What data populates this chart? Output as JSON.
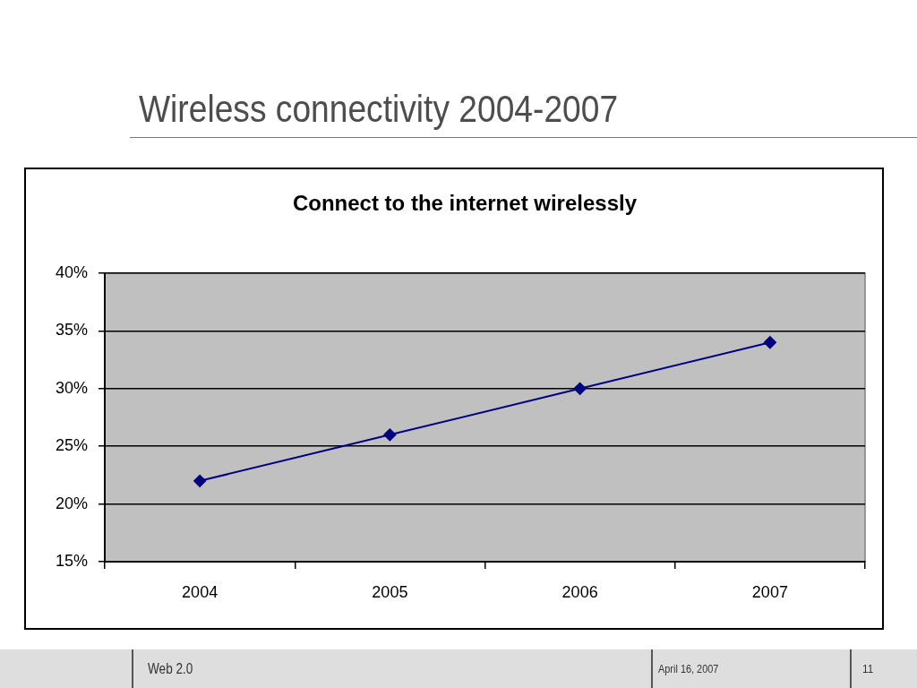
{
  "chart_data": {
    "type": "line",
    "title": "Wireless connectivity 2004-2007",
    "subtitle": "Connect to the internet wirelessly",
    "categories": [
      "2004",
      "2005",
      "2006",
      "2007"
    ],
    "values": [
      22,
      26,
      30,
      34
    ],
    "color": "#000080",
    "marker": "diamond",
    "line_style": "solid",
    "ylim": [
      15,
      40
    ],
    "yticks": [
      {
        "value": 15,
        "label": "15%"
      },
      {
        "value": 20,
        "label": "20%"
      },
      {
        "value": 25,
        "label": "25%"
      },
      {
        "value": 30,
        "label": "30%"
      },
      {
        "value": 35,
        "label": "35%"
      },
      {
        "value": 40,
        "label": "40%"
      }
    ],
    "grid": "y",
    "annotations": [
      "Web 2.0",
      "April 16, 2007",
      "11"
    ]
  }
}
